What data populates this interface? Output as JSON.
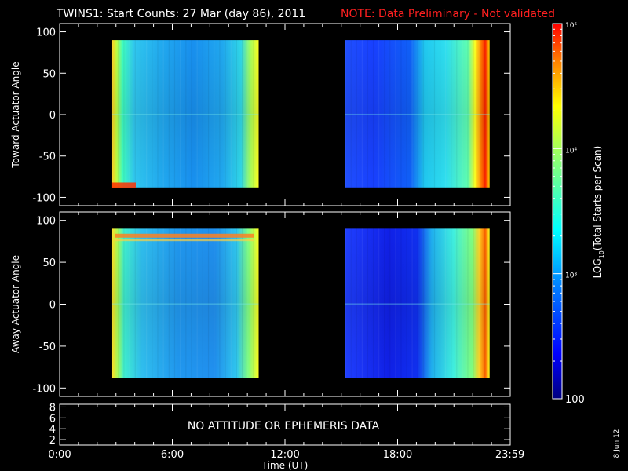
{
  "title": {
    "main": "TWINS1: Start Counts: 27 Mar (day  86), 2011",
    "note": "NOTE: Data Preliminary - Not validated"
  },
  "colorbar": {
    "label_prefix": "LOG",
    "label_sub": "10",
    "label_suffix": "(Total Starts per Scan)",
    "ticks": [
      {
        "value": 100,
        "text": "100",
        "major": true
      },
      {
        "value": 1000,
        "text": "10³",
        "major": true
      },
      {
        "value": 10000,
        "text": "10⁴",
        "major": true
      },
      {
        "value": 100000,
        "text": "10⁵",
        "major": true
      }
    ],
    "range": [
      100,
      100000
    ],
    "log": true,
    "colors": [
      "#00007f",
      "#0000ff",
      "#0080ff",
      "#00ffff",
      "#80ff80",
      "#ffff00",
      "#ff8000",
      "#ff0000"
    ]
  },
  "chart_data": [
    {
      "type": "heatmap",
      "ylabel": "Toward Actuator Angle",
      "ylim": [
        -110,
        110
      ],
      "yticks": [
        100,
        50,
        0,
        -50,
        -100
      ],
      "xlim": [
        0,
        24
      ],
      "data_blocks": [
        {
          "t_start": 2.8,
          "t_end": 10.6,
          "angle_min": -88,
          "angle_max": 90
        },
        {
          "t_start": 15.2,
          "t_end": 22.9,
          "angle_min": -88,
          "angle_max": 90
        }
      ]
    },
    {
      "type": "heatmap",
      "ylabel": "Away Actuator Angle",
      "ylim": [
        -110,
        110
      ],
      "yticks": [
        100,
        50,
        0,
        -50,
        -100
      ],
      "xlim": [
        0,
        24
      ],
      "data_blocks": [
        {
          "t_start": 2.8,
          "t_end": 10.6,
          "angle_min": -88,
          "angle_max": 90
        },
        {
          "t_start": 15.2,
          "t_end": 22.9,
          "angle_min": -88,
          "angle_max": 90
        }
      ]
    },
    {
      "type": "line",
      "ylim": [
        1,
        8.5
      ],
      "yticks": [
        8,
        6,
        4,
        2
      ],
      "xlim": [
        0,
        24
      ],
      "annotation": "NO ATTITUDE OR EPHEMERIS DATA"
    }
  ],
  "xaxis": {
    "ticks": [
      {
        "value": 0,
        "text": "0:00"
      },
      {
        "value": 6,
        "text": "6:00"
      },
      {
        "value": 12,
        "text": "12:00"
      },
      {
        "value": 18,
        "text": "18:00"
      },
      {
        "value": 23.983,
        "text": "23:59"
      }
    ],
    "label": "Time (UT)"
  },
  "footer": {
    "date_stamp": "8 Jun 12"
  }
}
